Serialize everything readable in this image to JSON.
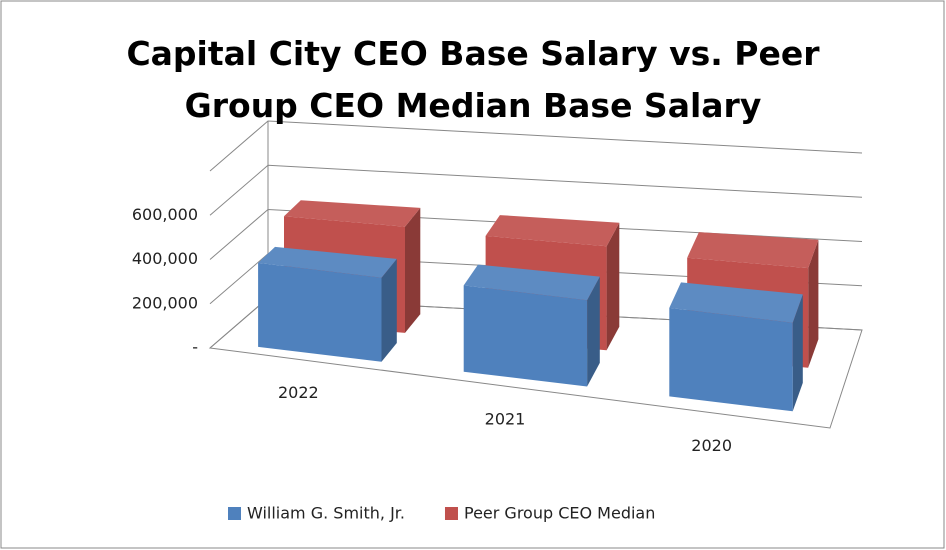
{
  "chart_data": {
    "type": "bar3d",
    "title": "Capital City CEO Base Salary vs. Peer Group CEO Median Base Salary",
    "categories": [
      "2022",
      "2021",
      "2020"
    ],
    "series": [
      {
        "name": "William G. Smith, Jr.",
        "color": "#4f81bd",
        "values": [
          380000,
          390000,
          400000
        ]
      },
      {
        "name": "Peer Group CEO Median",
        "color": "#c0504d",
        "values": [
          480000,
          470000,
          450000
        ]
      }
    ],
    "ylim": [
      0,
      800000
    ],
    "yticks": [
      {
        "value": 0,
        "label": "-"
      },
      {
        "value": 200000,
        "label": "200,000"
      },
      {
        "value": 400000,
        "label": "400,000"
      },
      {
        "value": 600000,
        "label": "600,000"
      }
    ],
    "grid": true,
    "legend": "bottom"
  }
}
